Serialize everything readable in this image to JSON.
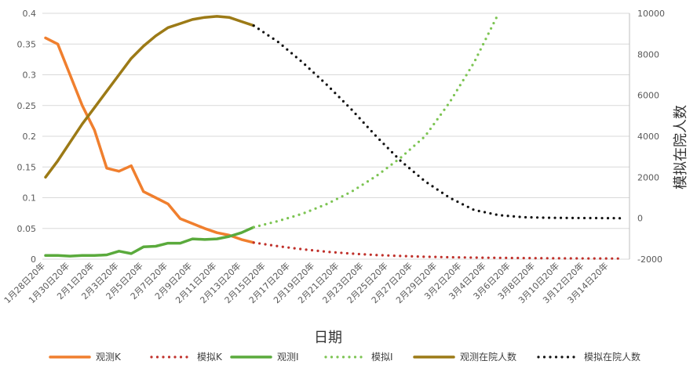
{
  "chart_data": {
    "type": "line",
    "xlabel": "日期",
    "y2label": "模拟在院人数",
    "ylim": [
      0,
      0.4
    ],
    "y2lim": [
      -2000,
      10000
    ],
    "y_ticks": [
      "0.4",
      "0.35",
      "0.3",
      "0.25",
      "0.2",
      "0.15",
      "0.1",
      "0.05",
      "0"
    ],
    "y2_ticks": [
      "10000",
      "8000",
      "6000",
      "4000",
      "2000",
      "0",
      "-2000"
    ],
    "x_ticks": [
      "1月28日20年",
      "1月30日20年",
      "2月1日20年",
      "2月3日20年",
      "2月5日20年",
      "2月7日20年",
      "2月9日20年",
      "2月11日20年",
      "2月13日20年",
      "2月15日20年",
      "2月17日20年",
      "2月19日20年",
      "2月21日20年",
      "2月23日20年",
      "2月25日20年",
      "2月27日20年",
      "2月29日20年",
      "3月2日20年",
      "3月4日20年",
      "3月6日20年",
      "3月8日20年",
      "3月10日20年",
      "3月12日20年",
      "3月14日20年"
    ],
    "legend_position": "bottom",
    "grid": "horizontal",
    "series": [
      {
        "name": "观测K",
        "axis": "left",
        "style": "solid",
        "color": "#F07F2E",
        "x": [
          "1月28日20年",
          "1月29日20年",
          "1月30日20年",
          "1月31日20年",
          "2月1日20年",
          "2月2日20年",
          "2月3日20年",
          "2月4日20年",
          "2月5日20年",
          "2月6日20年",
          "2月7日20年",
          "2月8日20年",
          "2月9日20年",
          "2月10日20年",
          "2月11日20年",
          "2月12日20年",
          "2月13日20年",
          "2月14日20年"
        ],
        "values": [
          0.36,
          0.35,
          0.3,
          0.25,
          0.21,
          0.148,
          0.143,
          0.152,
          0.11,
          0.1,
          0.09,
          0.066,
          0.058,
          0.05,
          0.043,
          0.039,
          0.032,
          0.027
        ]
      },
      {
        "name": "模拟K",
        "axis": "left",
        "style": "dotted",
        "color": "#C0312B",
        "x": [
          "2月14日20年",
          "2月16日20年",
          "2月18日20年",
          "2月20日20年",
          "2月22日20年",
          "2月24日20年",
          "2月26日20年",
          "2月28日20年",
          "3月1日20年",
          "3月3日20年",
          "3月5日20年",
          "3月7日20年",
          "3月9日20年",
          "3月11日20年",
          "3月13日20年",
          "3月15日20年"
        ],
        "values": [
          0.027,
          0.021,
          0.016,
          0.012,
          0.009,
          0.0068,
          0.0052,
          0.004,
          0.0032,
          0.0026,
          0.0022,
          0.0018,
          0.0015,
          0.0013,
          0.0011,
          0.001
        ]
      },
      {
        "name": "观测I",
        "axis": "left",
        "style": "solid",
        "color": "#5AAA3C",
        "x": [
          "1月28日20年",
          "1月29日20年",
          "1月30日20年",
          "1月31日20年",
          "2月1日20年",
          "2月2日20年",
          "2月3日20年",
          "2月4日20年",
          "2月5日20年",
          "2月6日20年",
          "2月7日20年",
          "2月8日20年",
          "2月9日20年",
          "2月10日20年",
          "2月11日20年",
          "2月12日20年",
          "2月13日20年",
          "2月14日20年"
        ],
        "values": [
          0.006,
          0.006,
          0.005,
          0.006,
          0.006,
          0.007,
          0.013,
          0.009,
          0.02,
          0.021,
          0.026,
          0.026,
          0.033,
          0.032,
          0.033,
          0.037,
          0.043,
          0.052
        ]
      },
      {
        "name": "模拟I",
        "axis": "left",
        "style": "dotted",
        "color": "#7CC452",
        "x": [
          "2月14日20年",
          "2月16日20年",
          "2月18日20年",
          "2月20日20年",
          "2月22日20年",
          "2月24日20年",
          "2月26日20年",
          "2月28日20年",
          "3月1日20年",
          "3月3日20年",
          "3月5日20年"
        ],
        "values": [
          0.052,
          0.062,
          0.074,
          0.09,
          0.11,
          0.135,
          0.165,
          0.2,
          0.255,
          0.32,
          0.4
        ]
      },
      {
        "name": "观测在院人数",
        "axis": "right",
        "style": "solid",
        "color": "#9C7A16",
        "x": [
          "1月28日20年",
          "1月29日20年",
          "1月30日20年",
          "1月31日20年",
          "2月1日20年",
          "2月2日20年",
          "2月3日20年",
          "2月4日20年",
          "2月5日20年",
          "2月6日20年",
          "2月7日20年",
          "2月8日20年",
          "2月9日20年",
          "2月10日20年",
          "2月11日20年",
          "2月12日20年",
          "2月13日20年",
          "2月14日20年"
        ],
        "values": [
          2000,
          2800,
          3700,
          4600,
          5400,
          6200,
          7000,
          7800,
          8400,
          8900,
          9300,
          9500,
          9700,
          9800,
          9850,
          9800,
          9600,
          9400
        ]
      },
      {
        "name": "模拟在院人数",
        "axis": "right",
        "style": "dotted",
        "color": "#111111",
        "x": [
          "2月14日20年",
          "2月16日20年",
          "2月18日20年",
          "2月20日20年",
          "2月22日20年",
          "2月24日20年",
          "2月26日20年",
          "2月28日20年",
          "3月1日20年",
          "3月3日20年",
          "3月5日20年",
          "3月7日20年",
          "3月9日20年",
          "3月11日20年",
          "3月13日20年",
          "3月15日20年"
        ],
        "values": [
          9400,
          8600,
          7600,
          6500,
          5300,
          4000,
          2800,
          1800,
          1000,
          400,
          150,
          50,
          20,
          10,
          5,
          0
        ]
      }
    ]
  }
}
